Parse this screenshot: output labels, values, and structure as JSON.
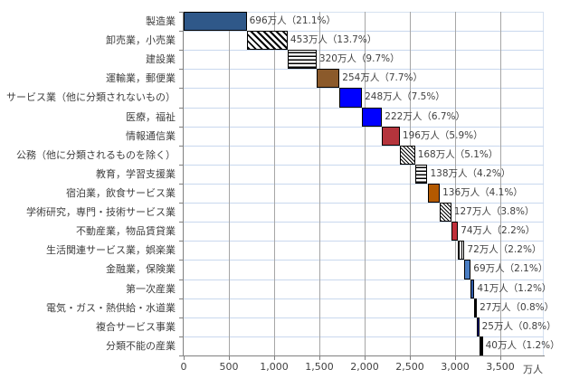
{
  "chart_data": {
    "type": "bar",
    "orientation": "horizontal",
    "subtype": "waterfall",
    "title": "",
    "xlabel": "万人",
    "ylabel": "",
    "xlim": [
      0,
      4000
    ],
    "xticks": [
      "0",
      "500",
      "1,000",
      "1,500",
      "2,000",
      "2,500",
      "3,000",
      "3,500"
    ],
    "grid": true,
    "legend": null,
    "categories": [
      "製造業",
      "卸売業，小売業",
      "建設業",
      "運輸業，郵便業",
      "サービス業（他に分類されないもの）",
      "医療，福祉",
      "情報通信業",
      "公務（他に分類されるものを除く）",
      "教育，学習支援業",
      "宿泊業，飲食サービス業",
      "学術研究，専門・技術サービス業",
      "不動産業，物品賃貸業",
      "生活関連サービス業，娯楽業",
      "金融業，保険業",
      "第一次産業",
      "電気・ガス・熱供給・水道業",
      "複合サービス事業",
      "分類不能の産業"
    ],
    "values": [
      696,
      453,
      320,
      254,
      248,
      222,
      196,
      168,
      138,
      136,
      127,
      74,
      72,
      69,
      41,
      27,
      25,
      40
    ],
    "percentages": [
      21.1,
      13.7,
      9.7,
      7.7,
      7.5,
      6.7,
      5.9,
      5.1,
      4.2,
      4.1,
      3.8,
      2.2,
      2.2,
      2.1,
      1.2,
      0.8,
      0.8,
      1.2
    ],
    "starts": [
      0,
      696,
      1149,
      1469,
      1723,
      1971,
      2193,
      2389,
      2557,
      2695,
      2831,
      2958,
      3032,
      3104,
      3173,
      3214,
      3241,
      3266
    ],
    "data_labels": [
      "696万人（21.1%）",
      "453万人（13.7%）",
      "320万人（9.7%）",
      "254万人（7.7%）",
      "248万人（7.5%）",
      "222万人（6.7%）",
      "196万人（5.9%）",
      "168万人（5.1%）",
      "138万人（4.2%）",
      "136万人（4.1%）",
      "127万人（3.8%）",
      "74万人（2.2%）",
      "72万人（2.2%）",
      "69万人（2.1%）",
      "41万人（1.2%）",
      "27万人（0.8%）",
      "25万人（0.8%）",
      "40万人（1.2%）"
    ],
    "bar_styles": [
      {
        "fill": "#2f5889",
        "pattern": "solid"
      },
      {
        "fill": "#ffffff",
        "pattern": "diagonal"
      },
      {
        "fill": "#ffffff",
        "pattern": "horizontal"
      },
      {
        "fill": "#8b5a2b",
        "pattern": "solid"
      },
      {
        "fill": "#0000ff",
        "pattern": "solid"
      },
      {
        "fill": "#0000ff",
        "pattern": "solid"
      },
      {
        "fill": "#b5343c",
        "pattern": "solid"
      },
      {
        "fill": "#ffffff",
        "pattern": "diagonal-fine"
      },
      {
        "fill": "#ffffff",
        "pattern": "horizontal"
      },
      {
        "fill": "#b35900",
        "pattern": "solid"
      },
      {
        "fill": "#ffffff",
        "pattern": "diagonal-fine"
      },
      {
        "fill": "#c0303a",
        "pattern": "solid"
      },
      {
        "fill": "#ffffff",
        "pattern": "vertical"
      },
      {
        "fill": "#4a7ec4",
        "pattern": "solid"
      },
      {
        "fill": "#2f5aa8",
        "pattern": "solid"
      },
      {
        "fill": "#ffffff",
        "pattern": "vertical"
      },
      {
        "fill": "#00008b",
        "pattern": "solid"
      },
      {
        "fill": "#000000",
        "pattern": "solid"
      }
    ],
    "colors": {
      "axis": "#808080",
      "vertical_grid": "#a6a6a6",
      "horizontal_grid": "#c9d8ee",
      "text": "#404040"
    }
  }
}
